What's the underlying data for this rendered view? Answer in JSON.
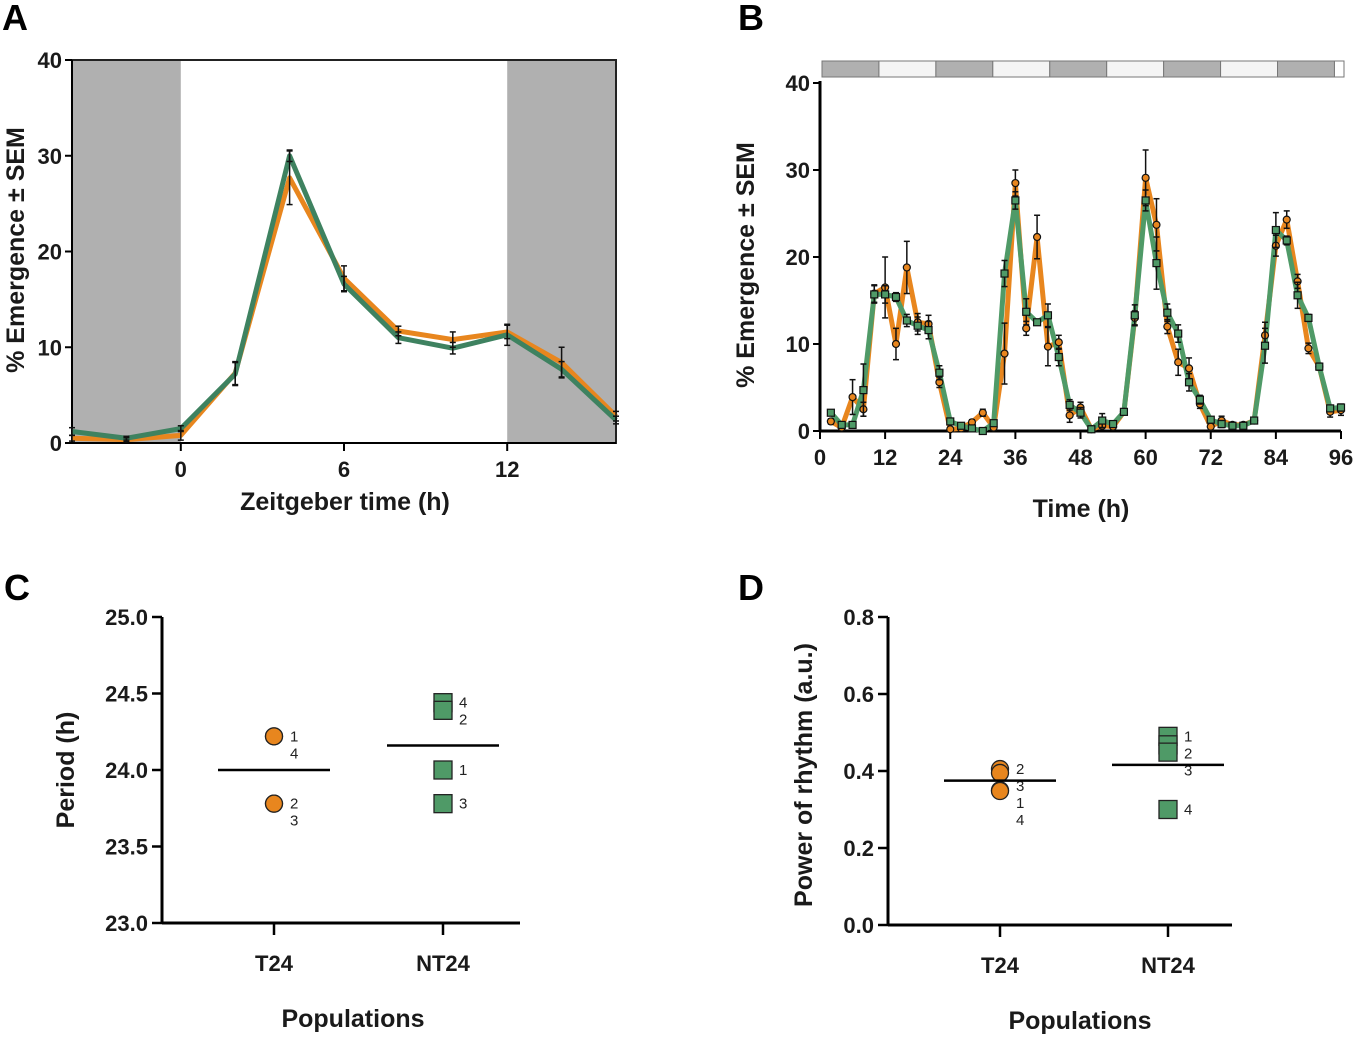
{
  "colors": {
    "orange": "#E8861E",
    "green": "#4F9A67",
    "green_dark": "#3E8260",
    "shade": "#B0B0B0",
    "light": "#F4F4F4"
  },
  "chart_data": [
    {
      "panel": "A",
      "type": "line",
      "xlabel": "Zeitgeber time (h)",
      "ylabel": "% Emergence ± SEM",
      "xlim": [
        -4,
        16
      ],
      "ylim": [
        0,
        40
      ],
      "xticks": [
        "0",
        "6",
        "12"
      ],
      "xtick_values": [
        0,
        6,
        12
      ],
      "yticks": [
        "0",
        "10",
        "20",
        "30",
        "40"
      ],
      "ytick_values": [
        0,
        10,
        20,
        30,
        40
      ],
      "dark_phases": [
        [
          -4,
          0
        ],
        [
          12,
          16
        ]
      ],
      "x": [
        -4,
        -2,
        0,
        2,
        4,
        6,
        8,
        10,
        12,
        14,
        16
      ],
      "series": [
        {
          "color": "orange",
          "values": [
            0.5,
            0.35,
            0.8,
            7.3,
            27.7,
            17.2,
            11.7,
            10.8,
            11.6,
            8.4,
            2.8
          ],
          "sem": [
            0.3,
            0.2,
            0.5,
            1.2,
            2.8,
            1.3,
            0.5,
            0.8,
            0.7,
            1.6,
            0.5
          ]
        },
        {
          "color": "green_dark",
          "values": [
            1.2,
            0.5,
            1.5,
            7.2,
            30.0,
            16.6,
            11.0,
            9.9,
            11.3,
            7.7,
            2.4
          ],
          "sem": [
            0.4,
            0.2,
            0.3,
            1.2,
            0.6,
            0.8,
            0.6,
            0.6,
            1.1,
            0.8,
            0.4
          ]
        }
      ]
    },
    {
      "panel": "B",
      "type": "line",
      "xlabel": "Time (h)",
      "ylabel": "% Emergence ± SEM",
      "xlim": [
        0,
        96
      ],
      "ylim": [
        0,
        40
      ],
      "xticks": [
        "0",
        "12",
        "24",
        "36",
        "48",
        "60",
        "72",
        "84",
        "96"
      ],
      "xtick_values": [
        0,
        12,
        24,
        36,
        48,
        60,
        72,
        84,
        96
      ],
      "yticks": [
        "0",
        "10",
        "20",
        "30",
        "40"
      ],
      "ytick_values": [
        0,
        10,
        20,
        30,
        40
      ],
      "light_schedule": [
        "dark",
        "light",
        "dark",
        "light",
        "dark",
        "light",
        "dark",
        "light",
        "dark"
      ],
      "x": [
        2,
        4,
        6,
        8,
        10,
        12,
        14,
        16,
        18,
        20,
        22,
        24,
        26,
        28,
        30,
        32,
        34,
        36,
        38,
        40,
        42,
        44,
        46,
        48,
        50,
        52,
        54,
        56,
        58,
        60,
        62,
        64,
        66,
        68,
        70,
        72,
        74,
        76,
        78,
        80,
        82,
        84,
        86,
        88,
        90,
        92,
        94,
        96
      ],
      "series": [
        {
          "color": "orange",
          "marker": "circle",
          "values": [
            1.1,
            0.4,
            3.9,
            2.5,
            15.8,
            16.5,
            10.0,
            18.8,
            12.5,
            12.3,
            5.6,
            0.2,
            0.3,
            1.0,
            2.1,
            0.4,
            8.9,
            28.5,
            11.8,
            22.3,
            9.7,
            10.2,
            1.8,
            2.7,
            0.2,
            0.6,
            0.5,
            2.2,
            13.0,
            29.1,
            23.7,
            12.0,
            7.9,
            7.2,
            3.1,
            0.5,
            1.2,
            0.7,
            0.7,
            1.2,
            11.0,
            21.3,
            24.3,
            17.2,
            9.5,
            7.4,
            2.2,
            2.4
          ],
          "sem": [
            0.3,
            0.3,
            2,
            0.8,
            1,
            3.5,
            1.8,
            3,
            1,
            1,
            0.6,
            0.2,
            0.2,
            0.3,
            0.4,
            0.3,
            3.5,
            1.5,
            0.8,
            2.5,
            2.2,
            0.8,
            0.8,
            0.6,
            0.3,
            0.3,
            0.3,
            0.3,
            0.8,
            3.2,
            3,
            0.8,
            1.5,
            1.2,
            0.5,
            0.4,
            0.5,
            0.3,
            0.3,
            0.3,
            1.5,
            1.2,
            1,
            0.8,
            0.6,
            0.4,
            0.6,
            0.6
          ]
        },
        {
          "color": "green",
          "marker": "square",
          "values": [
            2.1,
            0.7,
            0.7,
            4.7,
            15.7,
            15.7,
            15.4,
            12.7,
            12.1,
            11.6,
            6.7,
            1.1,
            0.6,
            0.3,
            0.0,
            0.9,
            18.1,
            26.5,
            13.7,
            12.5,
            13.3,
            8.5,
            3.0,
            2.1,
            0.2,
            1.2,
            0.8,
            2.2,
            13.3,
            26.5,
            19.3,
            13.6,
            11.2,
            5.6,
            3.6,
            1.3,
            0.8,
            0.6,
            0.6,
            1.2,
            9.8,
            23.1,
            21.9,
            15.6,
            13.0,
            7.4,
            2.6,
            2.7
          ],
          "sem": [
            0.3,
            0.3,
            0.3,
            3,
            1,
            1,
            0.5,
            0.7,
            1,
            1,
            0.8,
            0.3,
            0.3,
            0.3,
            0.3,
            0.3,
            1.5,
            1,
            1.5,
            0.3,
            1.3,
            1,
            0.6,
            0.6,
            0.3,
            0.8,
            0.3,
            0.3,
            1.2,
            1.2,
            3,
            1,
            1,
            1,
            0.5,
            0.3,
            0.4,
            0.3,
            0.3,
            0.3,
            2,
            2,
            0.5,
            1.5,
            0.4,
            0.3,
            0.3,
            0.4
          ]
        }
      ]
    },
    {
      "panel": "C",
      "type": "scatter",
      "xlabel": "Populations",
      "ylabel": "Period (h)",
      "ylim": [
        23.0,
        25.0
      ],
      "yticks": [
        "23.0",
        "23.5",
        "24.0",
        "24.5",
        "25.0"
      ],
      "ytick_values": [
        23.0,
        23.5,
        24.0,
        24.5,
        25.0
      ],
      "categories": [
        "T24",
        "NT24"
      ],
      "groups": [
        {
          "color": "orange",
          "marker": "circle",
          "mean": 24.0,
          "points": [
            {
              "label": "1",
              "value": 24.22
            },
            {
              "label": "4",
              "value": 24.22
            },
            {
              "label": "2",
              "value": 23.78
            },
            {
              "label": "3",
              "value": 23.78
            }
          ]
        },
        {
          "color": "green",
          "marker": "square",
          "mean": 24.16,
          "points": [
            {
              "label": "4",
              "value": 24.44
            },
            {
              "label": "2",
              "value": 24.39
            },
            {
              "label": "1",
              "value": 24.0
            },
            {
              "label": "3",
              "value": 23.78
            }
          ]
        }
      ]
    },
    {
      "panel": "D",
      "type": "scatter",
      "xlabel": "Populations",
      "ylabel": "Power of rhythm (a.u.)",
      "ylim": [
        0.0,
        0.8
      ],
      "yticks": [
        "0.0",
        "0.2",
        "0.4",
        "0.6",
        "0.8"
      ],
      "ytick_values": [
        0.0,
        0.2,
        0.4,
        0.6,
        0.8
      ],
      "categories": [
        "T24",
        "NT24"
      ],
      "groups": [
        {
          "color": "orange",
          "marker": "circle",
          "mean": 0.375,
          "points": [
            {
              "label": "2",
              "value": 0.405
            },
            {
              "label": "3",
              "value": 0.395
            },
            {
              "label": "1",
              "value": 0.35
            },
            {
              "label": "4",
              "value": 0.348
            }
          ]
        },
        {
          "color": "green",
          "marker": "square",
          "mean": 0.416,
          "points": [
            {
              "label": "1",
              "value": 0.49
            },
            {
              "label": "2",
              "value": 0.468
            },
            {
              "label": "3",
              "value": 0.449
            },
            {
              "label": "4",
              "value": 0.3
            }
          ]
        }
      ]
    }
  ]
}
